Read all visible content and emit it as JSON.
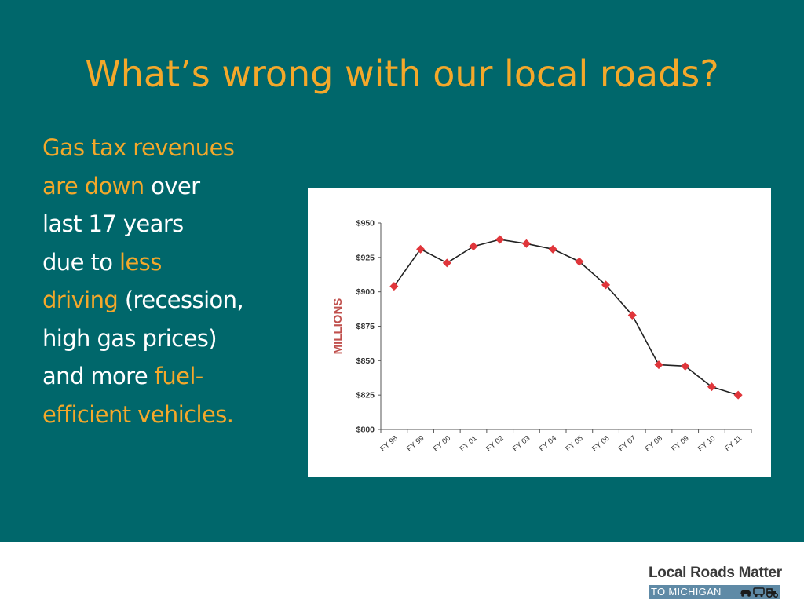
{
  "slide": {
    "title": "What’s wrong with our local roads?",
    "body": [
      {
        "text": "Gas tax revenues\nare down",
        "highlight": true
      },
      {
        "text": " over\nlast 17 years\ndue to ",
        "highlight": false
      },
      {
        "text": "less\ndriving",
        "highlight": true
      },
      {
        "text": " (recession,\nhigh gas prices)\nand more ",
        "highlight": false
      },
      {
        "text": "fuel-\nefficient vehicles.",
        "highlight": true
      }
    ]
  },
  "colors": {
    "background": "#00676b",
    "title": "#f4a82a",
    "highlight": "#f4a82a",
    "body_text": "#ffffff",
    "marker": "#e0363b",
    "line": "#222222",
    "ylabel": "#c0504d",
    "logo_bar": "#5f8aa6"
  },
  "chart_data": {
    "type": "line",
    "categories": [
      "FY 98",
      "FY 99",
      "FY 00",
      "FY 01",
      "FY 02",
      "FY 03",
      "FY 04",
      "FY 05",
      "FY 06",
      "FY 07",
      "FY 08",
      "FY 09",
      "FY 10",
      "FY 11"
    ],
    "values": [
      904,
      931,
      921,
      933,
      938,
      935,
      931,
      922,
      905,
      883,
      847,
      846,
      831,
      825
    ],
    "ylabel": "MILLIONS",
    "xlabel": "",
    "ylim": [
      800,
      950
    ],
    "yticks": [
      800,
      825,
      850,
      875,
      900,
      925,
      950
    ],
    "ytick_labels": [
      "$800",
      "$825",
      "$850",
      "$875",
      "$900",
      "$925",
      "$950"
    ],
    "grid": false,
    "marker": "diamond"
  },
  "logo": {
    "name": "Local Roads Matter",
    "tagline": "TO MICHIGAN",
    "icons": [
      "car-icon",
      "bus-icon",
      "tractor-icon"
    ]
  }
}
